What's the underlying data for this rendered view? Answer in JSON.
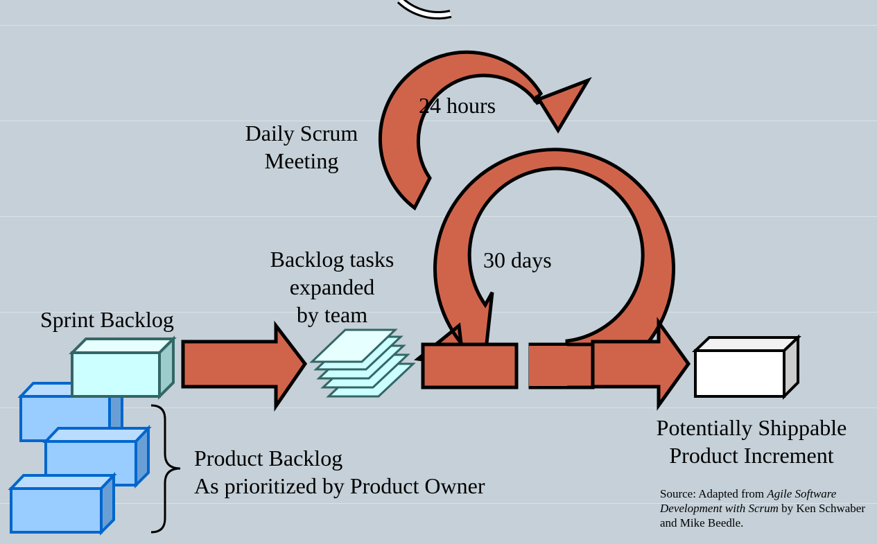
{
  "labels": {
    "daily_scrum": "Daily Scrum Meeting",
    "daily_scrum_line1": "Daily Scrum",
    "daily_scrum_line2": "Meeting",
    "hours_24": "24 hours",
    "days_30": "30 days",
    "backlog_tasks_line1": "Backlog tasks",
    "backlog_tasks_line2": "expanded",
    "backlog_tasks_line3": "by team",
    "sprint_backlog": "Sprint Backlog",
    "product_backlog_line1": "Product Backlog",
    "product_backlog_line2": "As prioritized by Product Owner",
    "increment_line1": "Potentially Shippable",
    "increment_line2": "Product Increment"
  },
  "source": {
    "prefix": "Source: Adapted from ",
    "book_title": "Agile Software Development with Scrum",
    "suffix": " by Ken Schwaber and Mike Beedle."
  },
  "colors": {
    "background": "#c5d0d8",
    "arrow": "#d0644a",
    "sprint_box": "#ccffff",
    "sprint_box_border": "#336666",
    "product_box": "#99ccff",
    "product_box_border": "#0066cc",
    "increment_box": "#ffffff"
  }
}
